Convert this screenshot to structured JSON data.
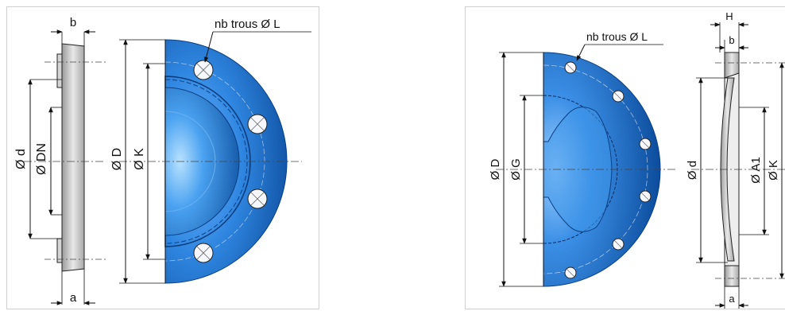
{
  "left_figure": {
    "dim_b": "b",
    "dim_a": "a",
    "dim_d": "Ø d",
    "dim_dn": "Ø DN",
    "dim_D": "Ø D",
    "dim_K": "Ø K",
    "holes_label": "nb trous Ø L"
  },
  "right_figure": {
    "holes_label": "nb trous Ø L",
    "dim_D": "Ø D",
    "dim_G": "Ø G",
    "dim_H": "H",
    "dim_b": "b",
    "dim_a": "a",
    "dim_d": "Ø d",
    "dim_A1": "Ø A1",
    "dim_K": "Ø K"
  },
  "colors": {
    "flange_blue": "#1f6fc8",
    "flange_dark": "#0d4f9e",
    "steel_grey": "#c8c8c8",
    "line": "#111111"
  }
}
